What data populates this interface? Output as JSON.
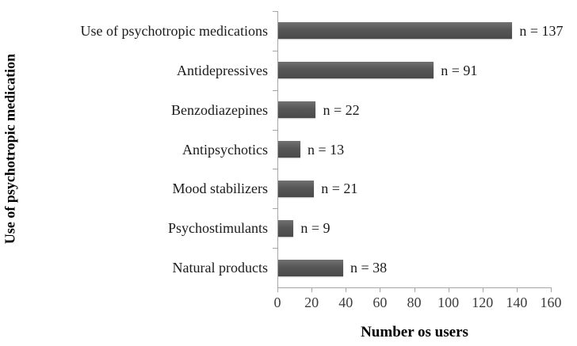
{
  "chart_data": {
    "type": "bar",
    "orientation": "horizontal",
    "title": "",
    "xlabel": "Number os users",
    "ylabel": "Use of psychotropic medication",
    "categories": [
      "Use of psychotropic medications",
      "Antidepressives",
      "Benzodiazepines",
      "Antipsychotics",
      "Mood stabilizers",
      "Psychostimulants",
      "Natural products"
    ],
    "values": [
      137,
      91,
      22,
      13,
      21,
      9,
      38
    ],
    "data_labels": [
      "n = 137",
      "n = 91",
      "n = 22",
      "n = 13",
      "n = 21",
      "n = 9",
      "n = 38"
    ],
    "xlim": [
      0,
      160
    ],
    "x_ticks": [
      0,
      20,
      40,
      60,
      80,
      100,
      120,
      140,
      160
    ],
    "legend": null,
    "grid": false,
    "bar_color": "#565656",
    "axis_color": "#a6a6a6",
    "label_color": "#1a1a1a"
  }
}
